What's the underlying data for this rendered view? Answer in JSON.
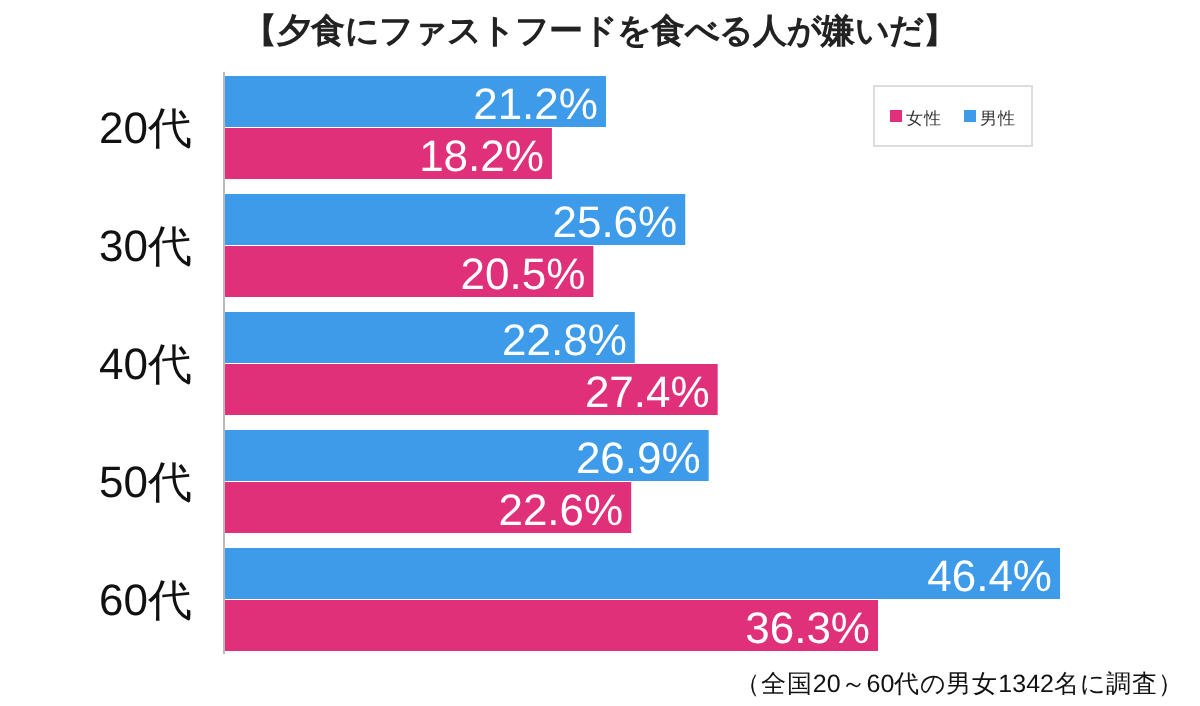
{
  "chart_data": {
    "type": "bar",
    "orientation": "horizontal",
    "title": "【夕食にファストフードを食べる人が嫌いだ】",
    "categories": [
      "20代",
      "30代",
      "40代",
      "50代",
      "60代"
    ],
    "series": [
      {
        "name": "男性",
        "color": "#3d9be9",
        "values": [
          21.2,
          25.6,
          22.8,
          26.9,
          46.4
        ],
        "value_labels": [
          "21.2%",
          "25.6%",
          "22.8%",
          "26.9%",
          "46.4%"
        ]
      },
      {
        "name": "女性",
        "color": "#e0307a",
        "values": [
          18.2,
          20.5,
          27.4,
          22.6,
          36.3
        ],
        "value_labels": [
          "18.2%",
          "20.5%",
          "27.4%",
          "22.6%",
          "36.3%"
        ]
      }
    ],
    "legend": "top right",
    "annotations": [
      "（全国20～60代の男女1342名に調査）"
    ]
  }
}
